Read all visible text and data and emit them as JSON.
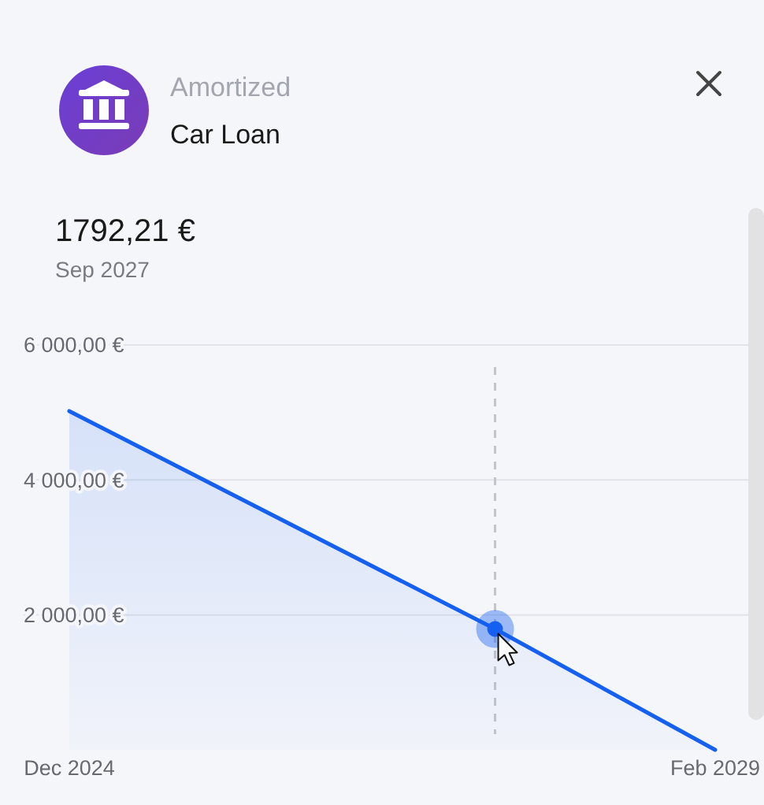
{
  "chart_data": {
    "type": "area",
    "title": "Amortized",
    "subtitle": "Car Loan",
    "annotations": [
      "1792,21 €",
      "Sep 2027"
    ],
    "xlim": [
      "2024-12",
      "2029-02"
    ],
    "xticks": [
      {
        "value": "2024-12",
        "label": "Dec 2024"
      },
      {
        "value": "2029-02",
        "label": "Feb 2029"
      }
    ],
    "ylim": [
      0,
      6000
    ],
    "yticks": [
      {
        "value": 2000,
        "label": "2 000,00 €"
      },
      {
        "value": 4000,
        "label": "4 000,00 €"
      },
      {
        "value": 6000,
        "label": "6 000,00 €"
      }
    ],
    "grid": "y",
    "series": [
      {
        "color": "#1560f0",
        "x": [
          "2024-12",
          "2027-09",
          "2029-02"
        ],
        "values": [
          5020,
          1792.21,
          0
        ]
      },
      {
        "type": "scatter",
        "color": "#1560f0",
        "x": [
          "2027-09"
        ],
        "values": [
          1792.21
        ]
      }
    ],
    "ref_lines": [
      {
        "axis": "x",
        "value": "2027-09",
        "color": "#c4c5ca",
        "line_style": "dashed"
      }
    ]
  }
}
